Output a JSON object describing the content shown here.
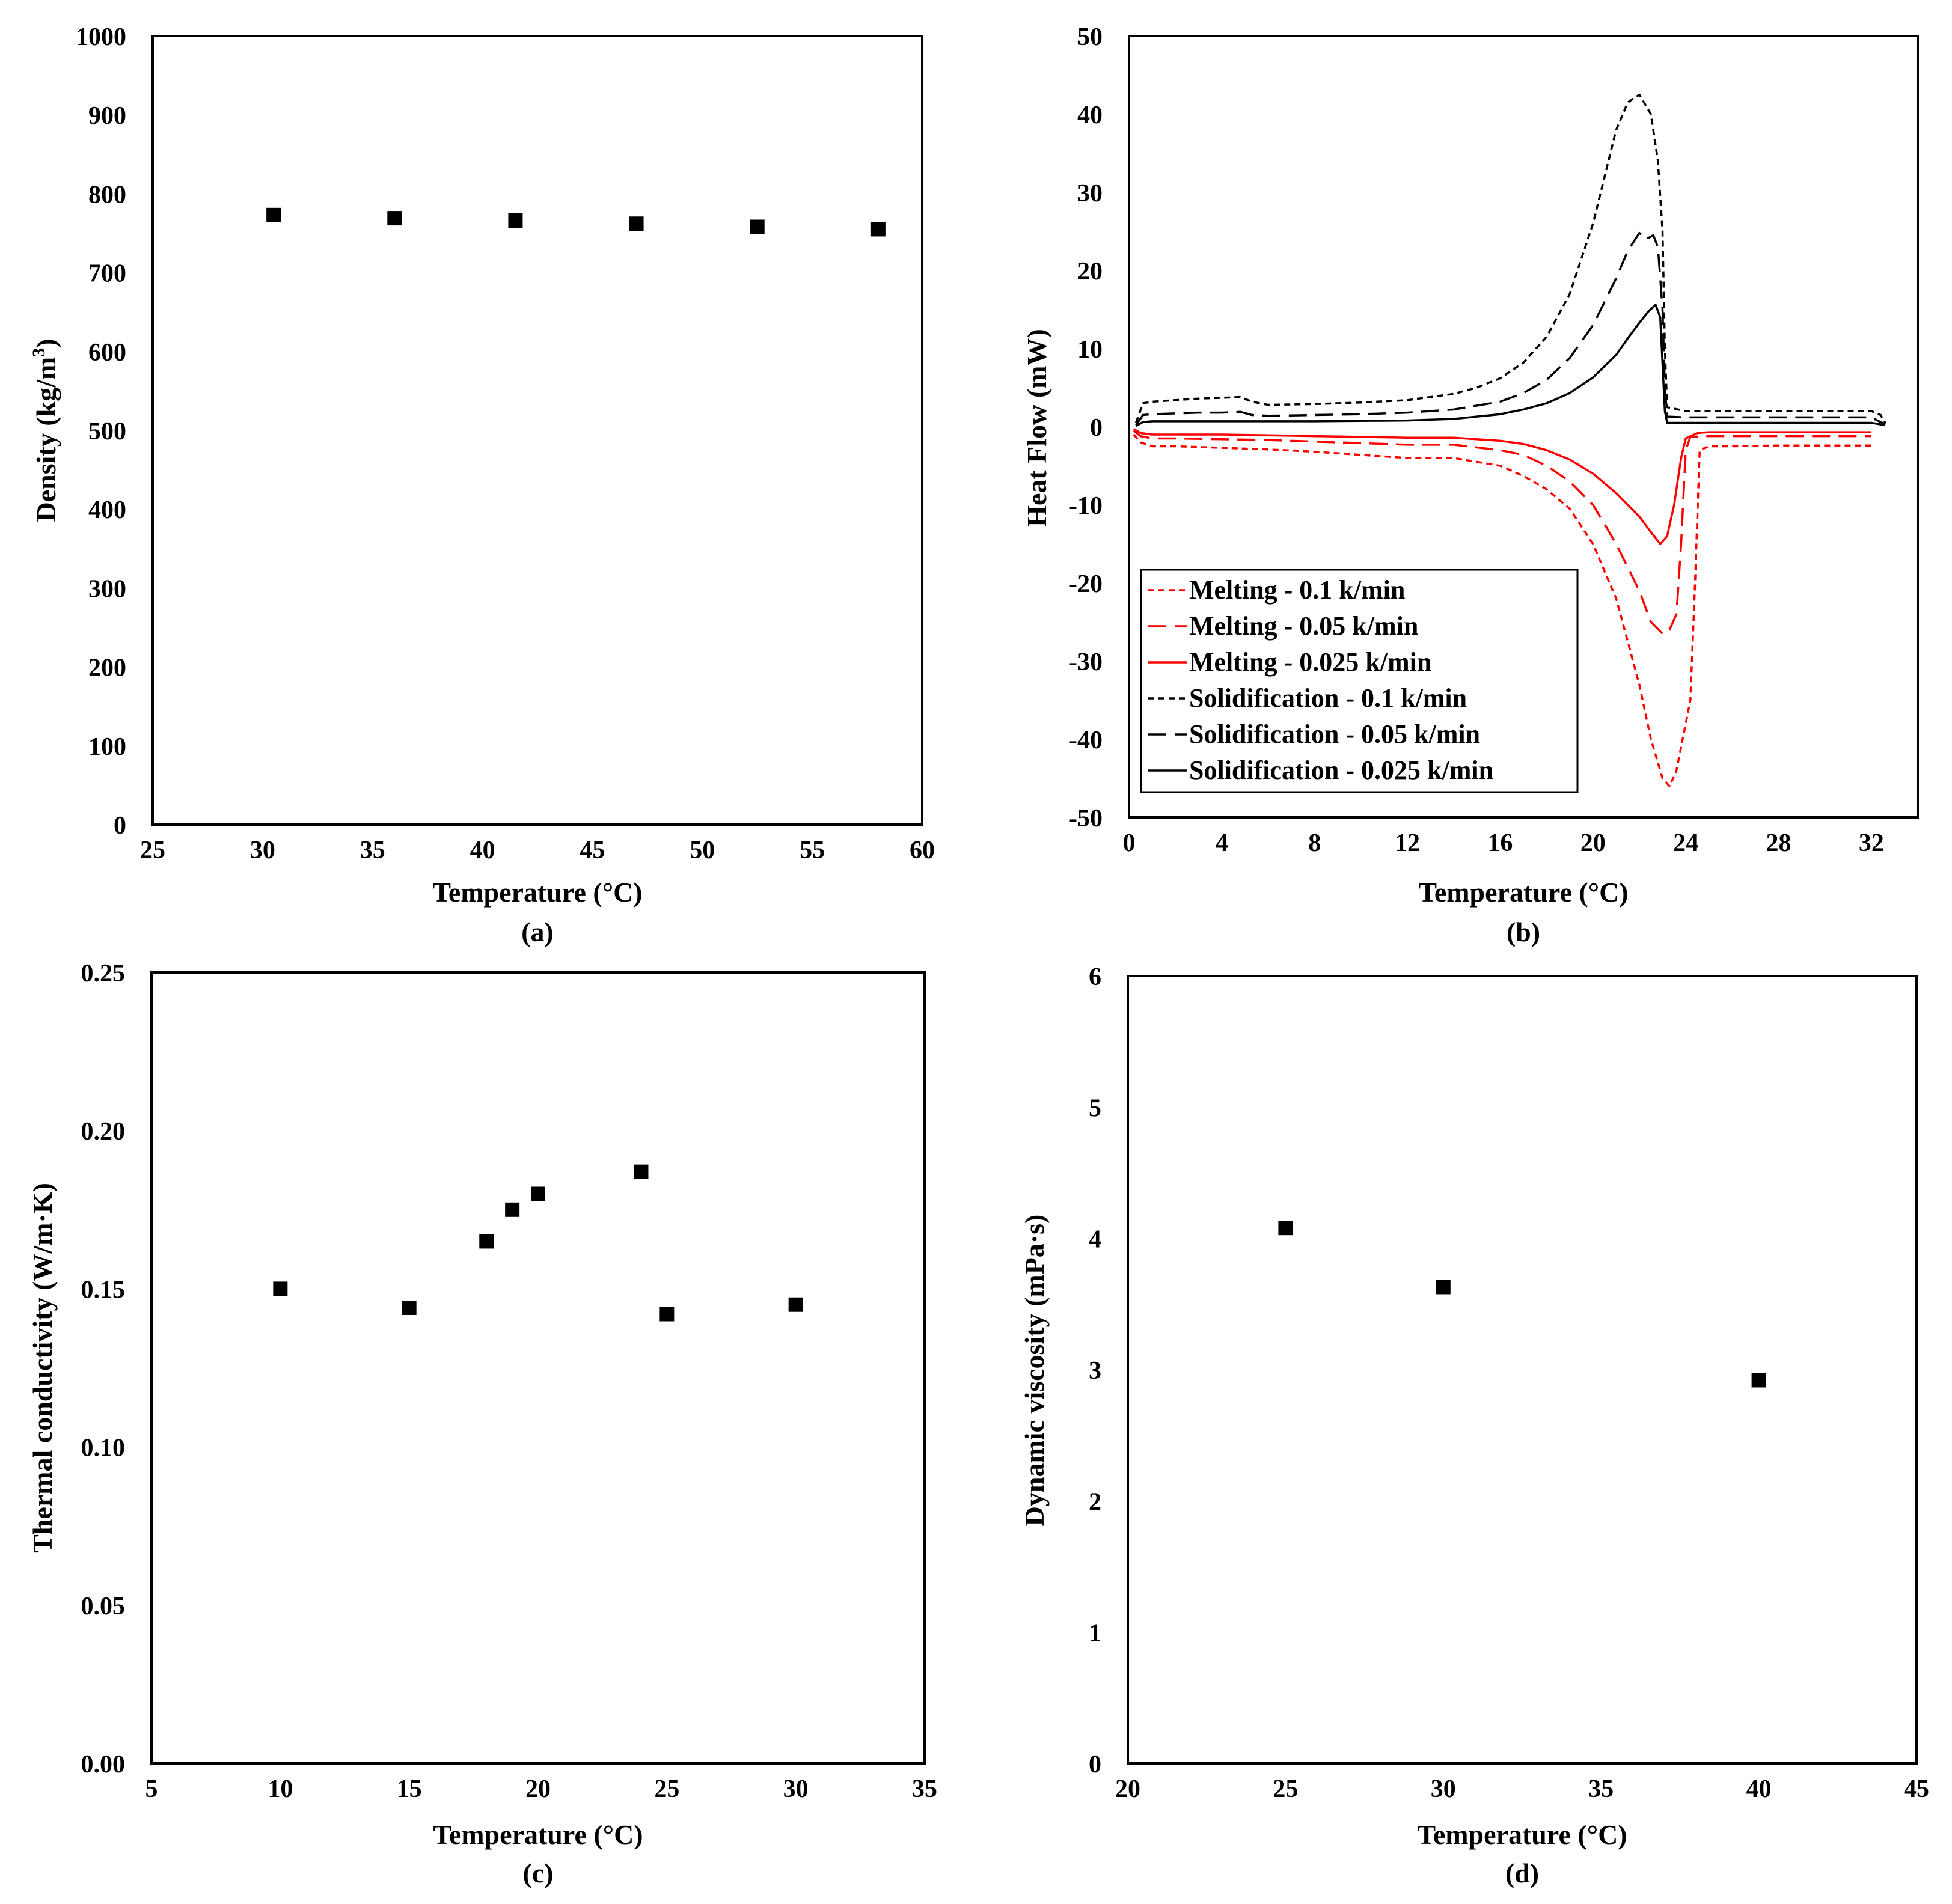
{
  "chart_data": [
    {
      "type": "scatter",
      "panel_label": "(a)",
      "title": "",
      "xlabel": "Temperature (°C)",
      "ylabel": "Density (kg/m",
      "ylabel_sup": "3",
      "ylabel_end": ")",
      "xlim": [
        25,
        60
      ],
      "ylim": [
        0,
        1000
      ],
      "xticks": [
        "25",
        "30",
        "35",
        "40",
        "45",
        "50",
        "55",
        "60"
      ],
      "yticks": [
        "0",
        "100",
        "200",
        "300",
        "400",
        "500",
        "600",
        "700",
        "800",
        "900",
        "1000"
      ],
      "series": [
        {
          "name": "Density",
          "x": [
            30.5,
            36.0,
            41.5,
            47.0,
            52.5,
            58.0
          ],
          "y": [
            773,
            769,
            766,
            762,
            758,
            755
          ]
        }
      ]
    },
    {
      "type": "line",
      "panel_label": "(b)",
      "title": "",
      "xlabel": "Temperature (°C)",
      "ylabel": "Heat Flow (mW)",
      "xlim": [
        0,
        34
      ],
      "ylim": [
        -50,
        50
      ],
      "xticks": [
        "0",
        "4",
        "8",
        "12",
        "16",
        "20",
        "24",
        "28",
        "32"
      ],
      "yticks": [
        "-50",
        "-40",
        "-30",
        "-20",
        "-10",
        "0",
        "10",
        "20",
        "30",
        "40",
        "50"
      ],
      "legend_position": "bottom-left",
      "series": [
        {
          "name": "Melting - 0.1 k/min",
          "color": "#ff0000",
          "dash": "short",
          "x": [
            0.2,
            0.5,
            1,
            2,
            4,
            6,
            8,
            10,
            12,
            14,
            15,
            16,
            17,
            18,
            19,
            20,
            21,
            22,
            22.5,
            23,
            23.3,
            23.6,
            24,
            24.2,
            24.4,
            24.6,
            25,
            26,
            28,
            30,
            32
          ],
          "y": [
            -1,
            -2,
            -2.5,
            -2.5,
            -2.7,
            -2.9,
            -3.2,
            -3.6,
            -4,
            -4,
            -4.5,
            -5,
            -6.3,
            -8,
            -10.5,
            -15,
            -22,
            -33,
            -40,
            -45,
            -46,
            -44,
            -38,
            -35,
            -20,
            -3,
            -2.5,
            -2.5,
            -2.4,
            -2.4,
            -2.4
          ]
        },
        {
          "name": "Melting - 0.05 k/min",
          "color": "#ff0000",
          "dash": "long",
          "x": [
            0.2,
            0.5,
            1,
            2,
            4,
            6,
            8,
            10,
            12,
            14,
            16,
            17,
            18,
            19,
            20,
            21,
            22,
            22.5,
            23,
            23.3,
            23.6,
            23.8,
            24,
            24.2,
            25,
            26,
            28,
            30,
            32
          ],
          "y": [
            -0.5,
            -1.2,
            -1.5,
            -1.5,
            -1.6,
            -1.7,
            -1.9,
            -2.1,
            -2.3,
            -2.3,
            -3,
            -3.6,
            -5,
            -7,
            -10,
            -15,
            -21,
            -25,
            -26.5,
            -26,
            -24,
            -15,
            -3,
            -1.3,
            -1.2,
            -1.2,
            -1.2,
            -1.2,
            -1.2
          ]
        },
        {
          "name": "Melting - 0.025 k/min",
          "color": "#ff0000",
          "dash": "solid",
          "x": [
            0.2,
            0.5,
            1,
            2,
            4,
            6,
            8,
            10,
            12,
            14,
            16,
            17,
            18,
            19,
            20,
            21,
            22,
            22.5,
            22.9,
            23.2,
            23.5,
            23.8,
            24,
            24.5,
            25,
            28,
            30,
            32
          ],
          "y": [
            -0.3,
            -0.8,
            -1,
            -1,
            -1,
            -1.1,
            -1.2,
            -1.3,
            -1.4,
            -1.4,
            -1.8,
            -2.2,
            -3,
            -4.2,
            -6,
            -8.5,
            -11.5,
            -13.5,
            -15,
            -14,
            -10,
            -4,
            -1.5,
            -0.8,
            -0.7,
            -0.7,
            -0.7,
            -0.7
          ]
        },
        {
          "name": "Solidification - 0.1 k/min",
          "color": "#000000",
          "dash": "short",
          "x": [
            0.3,
            0.6,
            1,
            2,
            3,
            4,
            4.8,
            5.3,
            6,
            8,
            10,
            12,
            14,
            15,
            16,
            17,
            18,
            19,
            20,
            20.5,
            21,
            21.5,
            22,
            22.5,
            22.8,
            23,
            23.1,
            23.2,
            24,
            26,
            28,
            30,
            32,
            32.4,
            32.6
          ],
          "y": [
            0.5,
            3,
            3.2,
            3.4,
            3.6,
            3.7,
            3.8,
            3.2,
            2.8,
            2.9,
            3.1,
            3.4,
            4.2,
            5,
            6.2,
            8.2,
            11.5,
            17,
            26,
            32,
            38,
            41.5,
            42.5,
            40,
            34,
            25,
            10,
            2.5,
            2,
            2,
            2,
            2,
            2,
            1.5,
            0.5
          ]
        },
        {
          "name": "Solidification - 0.05 k/min",
          "color": "#000000",
          "dash": "long",
          "x": [
            0.3,
            0.6,
            1,
            2,
            3,
            4,
            4.8,
            5.3,
            6,
            8,
            10,
            12,
            14,
            16,
            17,
            18,
            19,
            20,
            21,
            21.5,
            22,
            22.3,
            22.6,
            22.8,
            23,
            23.1,
            23.2,
            24,
            26,
            28,
            30,
            32,
            32.6
          ],
          "y": [
            0.2,
            1.5,
            1.6,
            1.7,
            1.8,
            1.8,
            1.9,
            1.5,
            1.4,
            1.5,
            1.6,
            1.8,
            2.2,
            3.2,
            4.3,
            6,
            8.8,
            13,
            19,
            22.5,
            24.8,
            24,
            24.5,
            23,
            15,
            5,
            1.3,
            1.2,
            1.2,
            1.2,
            1.2,
            1.2,
            0.3
          ]
        },
        {
          "name": "Solidification - 0.025 k/min",
          "color": "#000000",
          "dash": "solid",
          "x": [
            0.3,
            0.6,
            1,
            4,
            8,
            12,
            14,
            16,
            17,
            18,
            19,
            20,
            21,
            21.5,
            22,
            22.4,
            22.7,
            22.9,
            23,
            23.1,
            23.2,
            24,
            28,
            32,
            32.6
          ],
          "y": [
            0.1,
            0.6,
            0.7,
            0.7,
            0.7,
            0.8,
            1,
            1.6,
            2.2,
            3,
            4.3,
            6.3,
            9.2,
            11.3,
            13.3,
            14.8,
            15.6,
            14,
            8,
            2,
            0.5,
            0.5,
            0.5,
            0.5,
            0.2
          ]
        }
      ]
    },
    {
      "type": "scatter",
      "panel_label": "(c)",
      "title": "",
      "xlabel": "Temperature (°C)",
      "ylabel": "Thermal conductivity (W/m·K)",
      "xlim": [
        5,
        35
      ],
      "ylim": [
        0,
        0.25
      ],
      "xticks": [
        "5",
        "10",
        "15",
        "20",
        "25",
        "30",
        "35"
      ],
      "yticks": [
        "0.00",
        "0.05",
        "0.10",
        "0.15",
        "0.20",
        "0.25"
      ],
      "series": [
        {
          "name": "Thermal conductivity",
          "x": [
            10,
            15,
            18,
            19,
            20,
            24,
            25,
            30
          ],
          "y": [
            0.15,
            0.144,
            0.165,
            0.175,
            0.18,
            0.187,
            0.142,
            0.145
          ]
        }
      ]
    },
    {
      "type": "scatter",
      "panel_label": "(d)",
      "title": "",
      "xlabel": "Temperature (°C)",
      "ylabel": "Dynamic viscosity (mPa·s)",
      "xlim": [
        20,
        45
      ],
      "ylim": [
        0,
        6
      ],
      "xticks": [
        "20",
        "25",
        "30",
        "35",
        "40",
        "45"
      ],
      "yticks": [
        "0",
        "1",
        "2",
        "3",
        "4",
        "5",
        "6"
      ],
      "series": [
        {
          "name": "Dynamic viscosity",
          "x": [
            25,
            30,
            40
          ],
          "y": [
            4.08,
            3.63,
            2.92
          ]
        }
      ]
    }
  ]
}
